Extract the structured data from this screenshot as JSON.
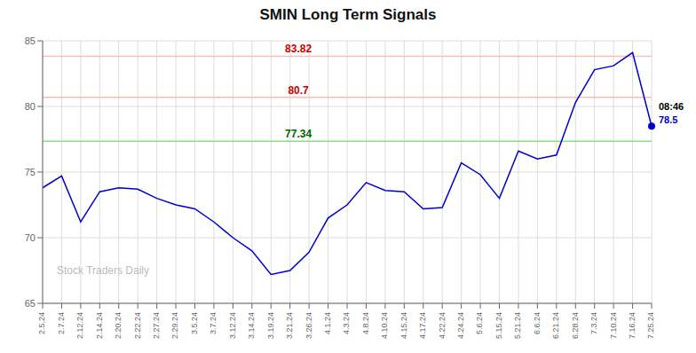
{
  "chart_data": {
    "type": "line",
    "title": "SMIN Long Term Signals",
    "categories": [
      "2.5.24",
      "2.7.24",
      "2.12.24",
      "2.14.24",
      "2.20.24",
      "2.22.24",
      "2.27.24",
      "2.29.24",
      "3.5.24",
      "3.7.24",
      "3.12.24",
      "3.14.24",
      "3.19.24",
      "3.21.24",
      "3.26.24",
      "4.1.24",
      "4.3.24",
      "4.8.24",
      "4.10.24",
      "4.15.24",
      "4.17.24",
      "4.22.24",
      "4.24.24",
      "5.6.24",
      "5.15.24",
      "5.21.24",
      "6.6.24",
      "6.21.24",
      "6.28.24",
      "7.3.24",
      "7.10.24",
      "7.16.24",
      "7.25.24"
    ],
    "values": [
      73.8,
      74.7,
      71.2,
      73.5,
      73.8,
      73.7,
      73.0,
      72.5,
      72.2,
      71.2,
      70.0,
      69.0,
      67.2,
      67.5,
      68.9,
      71.5,
      72.5,
      74.2,
      73.6,
      73.5,
      72.2,
      72.3,
      75.7,
      74.8,
      73.0,
      76.6,
      76.0,
      76.3,
      80.3,
      82.8,
      83.1,
      84.1,
      78.5
    ],
    "color": "#0000cc",
    "ylim": [
      65,
      85
    ],
    "yticks": [
      65,
      70,
      75,
      80,
      85
    ],
    "grid": true,
    "hlines": [
      {
        "value": 83.82,
        "label": "83.82",
        "color": "#ffbbbb",
        "label_color": "#cc0000"
      },
      {
        "value": 80.7,
        "label": "80.7",
        "color": "#ffbbbb",
        "label_color": "#cc0000"
      },
      {
        "value": 77.34,
        "label": "77.34",
        "color": "#88dd88",
        "label_color": "#006600"
      }
    ],
    "annotations": [
      {
        "text": "08:46",
        "color": "#000000"
      },
      {
        "text": "78.5",
        "color": "#0000cc"
      },
      {
        "text": "Stock Traders Daily",
        "color": "#bbbbbb"
      }
    ]
  }
}
